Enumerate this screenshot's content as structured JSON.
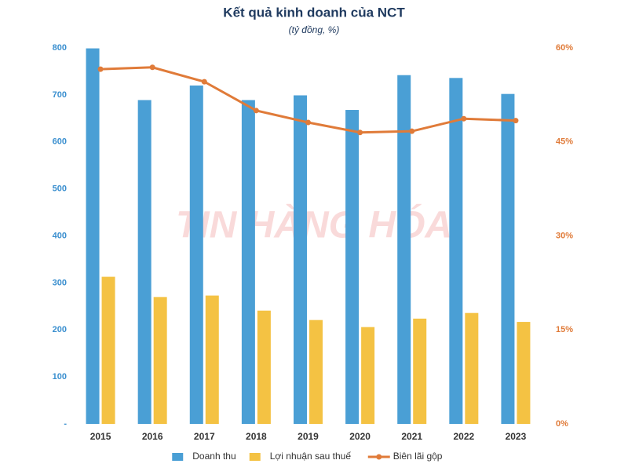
{
  "chart_data": {
    "type": "bar",
    "title": "Kết quả kinh doanh của NCT",
    "subtitle": "(tỷ đồng, %)",
    "watermark": "TIN HÀNG HÓA",
    "categories": [
      "2015",
      "2016",
      "2017",
      "2018",
      "2019",
      "2020",
      "2021",
      "2022",
      "2023"
    ],
    "series": [
      {
        "name": "Doanh thu",
        "color": "#4a9fd5",
        "type": "bar",
        "values": [
          799,
          689,
          720,
          689,
          699,
          668,
          742,
          736,
          702
        ]
      },
      {
        "name": "Lợi nhuận sau thuế",
        "color": "#f4c243",
        "type": "bar",
        "values": [
          313,
          270,
          273,
          241,
          221,
          206,
          224,
          236,
          217
        ]
      },
      {
        "name": "Biên lãi gộp",
        "color": "#e07b39",
        "type": "line",
        "axis": "y2",
        "values": [
          56.6,
          56.9,
          54.6,
          50.0,
          48.1,
          46.5,
          46.7,
          48.7,
          48.4
        ]
      }
    ],
    "ylim": [
      0,
      800
    ],
    "yticks": [
      {
        "value": 0,
        "label": "-"
      },
      100,
      200,
      300,
      400,
      500,
      600,
      700,
      800
    ],
    "y2lim": [
      0,
      60
    ],
    "y2ticks": [
      {
        "value": 0,
        "label": "0%"
      },
      {
        "value": 15,
        "label": "15%"
      },
      {
        "value": 30,
        "label": "30%"
      },
      {
        "value": 45,
        "label": "45%"
      },
      {
        "value": 60,
        "label": "60%"
      }
    ],
    "grid": false
  }
}
